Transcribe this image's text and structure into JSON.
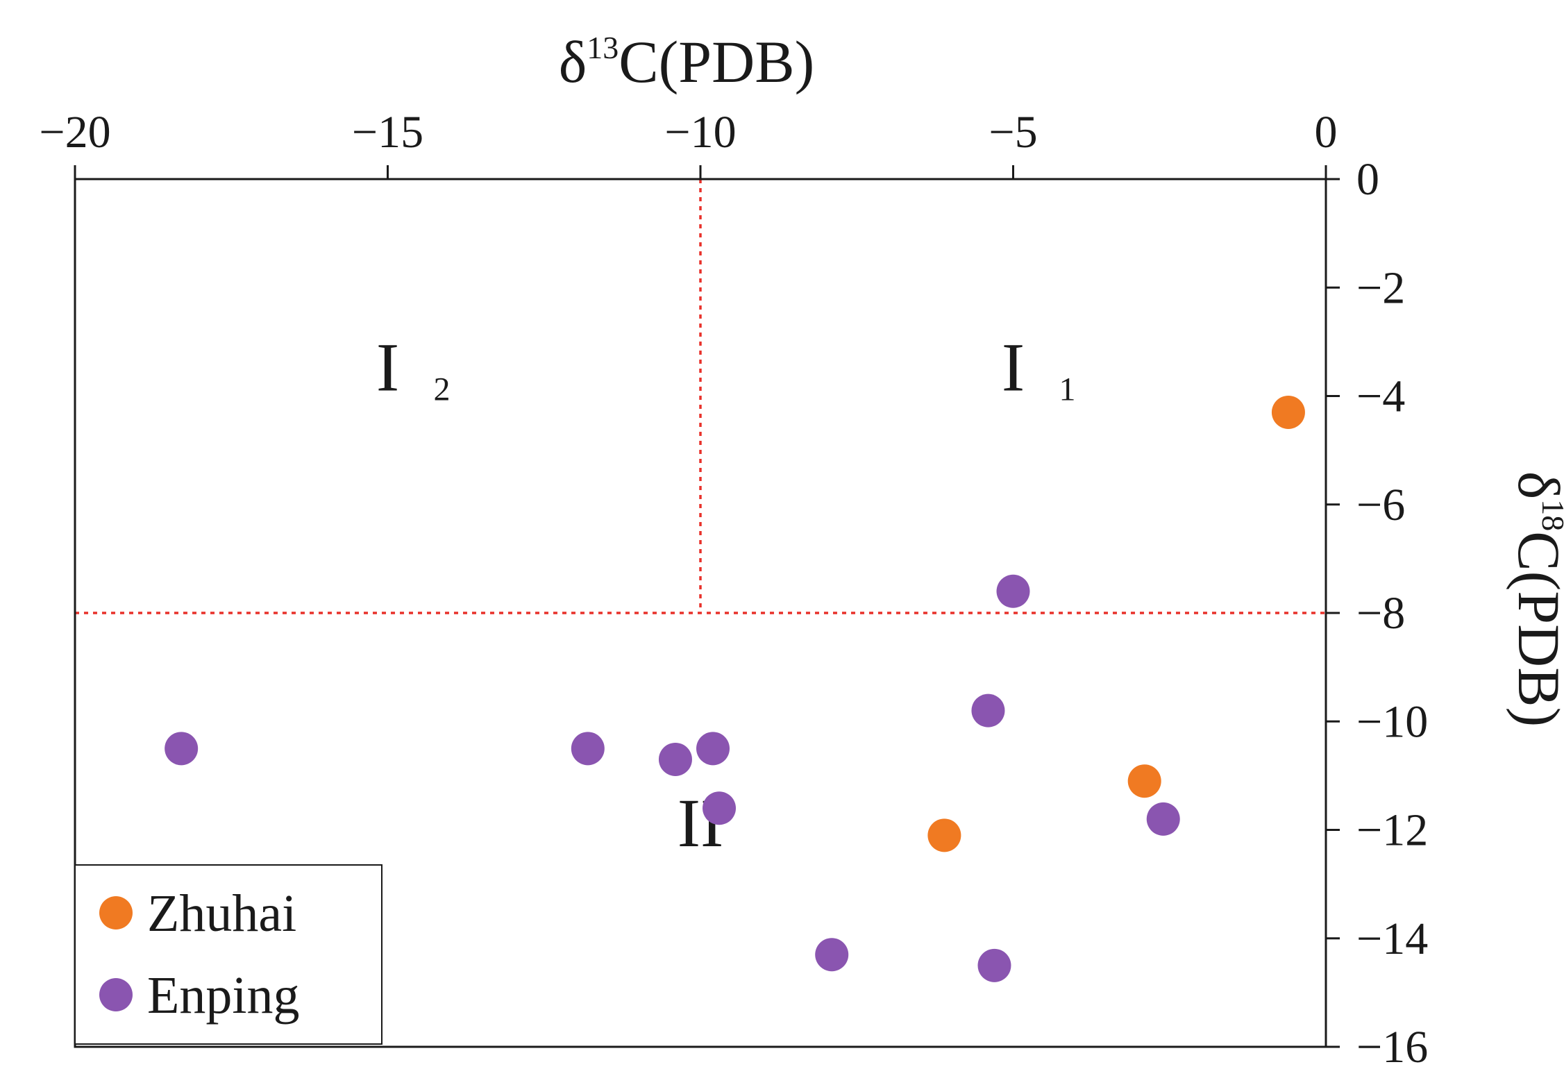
{
  "chart_data": {
    "type": "scatter",
    "title": "",
    "xlabel": {
      "symbol": "δ",
      "sup": "13",
      "rest": "C(PDB)"
    },
    "ylabel": {
      "symbol": "δ",
      "sup": "18",
      "rest": "C(PDB)"
    },
    "xlim": [
      -20,
      0
    ],
    "ylim": [
      -16,
      0
    ],
    "x_axis_position": "top",
    "y_axis_position": "right",
    "x_ticks": [
      -20,
      -15,
      -10,
      -5,
      0
    ],
    "y_ticks": [
      0,
      -2,
      -4,
      -6,
      -8,
      -10,
      -12,
      -14,
      -16
    ],
    "x_tick_labels": [
      "−20",
      "−15",
      "−10",
      "−5",
      "0"
    ],
    "y_tick_labels": [
      "0",
      "−2",
      "−4",
      "−6",
      "−8",
      "−10",
      "−12",
      "−14",
      "−16"
    ],
    "grid": false,
    "legend_position": "bottom-left",
    "boundaries": [
      {
        "orientation": "vertical",
        "x": -10,
        "y_from": 0,
        "y_to": -8,
        "color": "#e8312a",
        "style": "dotted"
      },
      {
        "orientation": "horizontal",
        "y": -8,
        "x_from": -20,
        "x_to": 0,
        "color": "#e8312a",
        "style": "dotted"
      }
    ],
    "regions": [
      {
        "main": "I",
        "sub": "2",
        "x": -15,
        "y": -3.9
      },
      {
        "main": "I",
        "sub": "1",
        "x": -5,
        "y": -3.9
      },
      {
        "main": "II",
        "sub": "",
        "x": -10,
        "y": -12.3
      }
    ],
    "series": [
      {
        "name": "Zhuhai",
        "color": "#f07a22",
        "points": [
          {
            "x": -0.6,
            "y": -4.3
          },
          {
            "x": -2.9,
            "y": -11.1
          },
          {
            "x": -6.1,
            "y": -12.1
          }
        ]
      },
      {
        "name": "Enping",
        "color": "#8a55b0",
        "points": [
          {
            "x": -5.0,
            "y": -7.6
          },
          {
            "x": -5.4,
            "y": -9.8
          },
          {
            "x": -18.3,
            "y": -10.5
          },
          {
            "x": -11.8,
            "y": -10.5
          },
          {
            "x": -10.4,
            "y": -10.7
          },
          {
            "x": -9.8,
            "y": -10.5
          },
          {
            "x": -9.7,
            "y": -11.6
          },
          {
            "x": -2.6,
            "y": -11.8
          },
          {
            "x": -7.9,
            "y": -14.3
          },
          {
            "x": -5.3,
            "y": -14.5
          }
        ]
      }
    ]
  }
}
